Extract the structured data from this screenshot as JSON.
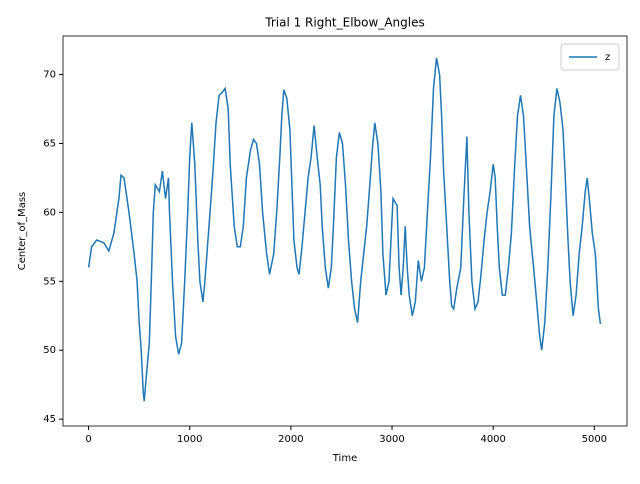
{
  "chart_data": {
    "type": "line",
    "title": "Trial 1 Right_Elbow_Angles",
    "x_label": "Time",
    "y_label": "Center_of_Mass",
    "x": [
      0,
      30,
      80,
      150,
      200,
      250,
      300,
      320,
      350,
      400,
      450,
      480,
      500,
      520,
      540,
      550,
      570,
      600,
      620,
      640,
      660,
      700,
      730,
      760,
      790,
      800,
      830,
      860,
      890,
      920,
      950,
      980,
      1000,
      1020,
      1050,
      1080,
      1100,
      1130,
      1150,
      1200,
      1230,
      1260,
      1290,
      1320,
      1350,
      1380,
      1400,
      1440,
      1470,
      1500,
      1530,
      1560,
      1600,
      1630,
      1660,
      1690,
      1720,
      1760,
      1790,
      1830,
      1860,
      1890,
      1910,
      1930,
      1960,
      1990,
      2010,
      2030,
      2060,
      2080,
      2110,
      2140,
      2170,
      2200,
      2230,
      2260,
      2290,
      2310,
      2340,
      2370,
      2400,
      2420,
      2450,
      2480,
      2510,
      2540,
      2570,
      2600,
      2630,
      2660,
      2690,
      2720,
      2750,
      2780,
      2810,
      2830,
      2860,
      2890,
      2910,
      2940,
      2970,
      2990,
      3010,
      3050,
      3070,
      3090,
      3110,
      3130,
      3150,
      3170,
      3200,
      3230,
      3260,
      3290,
      3320,
      3350,
      3380,
      3410,
      3440,
      3470,
      3490,
      3510,
      3540,
      3570,
      3590,
      3610,
      3640,
      3680,
      3710,
      3740,
      3760,
      3790,
      3820,
      3850,
      3880,
      3910,
      3940,
      3970,
      4000,
      4020,
      4040,
      4060,
      4090,
      4120,
      4150,
      4180,
      4210,
      4240,
      4270,
      4300,
      4330,
      4360,
      4400,
      4430,
      4460,
      4480,
      4510,
      4540,
      4570,
      4600,
      4630,
      4660,
      4690,
      4710,
      4740,
      4760,
      4790,
      4820,
      4850,
      4880,
      4910,
      4930,
      4950,
      4980,
      5010,
      5040,
      5060
    ],
    "series": [
      {
        "name": "z",
        "color": "#1f77b4",
        "values": [
          56,
          57.5,
          58,
          57.8,
          57.2,
          58.5,
          61,
          62.7,
          62.5,
          60,
          57,
          55,
          52,
          50,
          47,
          46.3,
          48,
          50.5,
          55,
          60,
          62,
          61.5,
          63,
          61,
          62.5,
          60,
          55,
          51,
          49.7,
          50.5,
          55,
          60,
          64,
          66.5,
          63.5,
          58,
          55,
          53.5,
          55,
          60,
          63,
          66.5,
          68.5,
          68.7,
          69,
          67.5,
          63.5,
          59,
          57.5,
          57.5,
          59,
          62.5,
          64.5,
          65.3,
          65,
          63.5,
          60,
          57,
          55.5,
          57,
          60,
          64,
          67,
          68.9,
          68.3,
          66,
          62,
          58,
          56,
          55.5,
          57.5,
          60,
          62.5,
          64,
          66.3,
          64,
          62,
          59,
          56,
          54.5,
          56,
          59,
          64,
          65.8,
          65,
          62,
          58,
          55,
          53,
          52,
          55,
          57,
          59,
          62,
          65,
          66.5,
          65,
          61.5,
          57,
          54,
          55,
          58,
          61,
          60.5,
          56,
          54,
          56,
          59,
          56,
          54,
          52.5,
          53.5,
          56.5,
          55,
          56,
          60,
          64,
          69,
          71.2,
          70,
          67,
          63,
          59,
          55,
          53.2,
          53,
          54.5,
          56,
          61,
          65.5,
          60,
          55,
          53,
          53.5,
          55.5,
          58,
          60,
          61.5,
          63.5,
          62.5,
          59,
          56,
          54,
          54,
          56,
          58.5,
          63,
          67,
          68.5,
          67,
          63,
          59,
          56,
          53.5,
          51,
          50,
          52,
          56,
          61,
          67,
          69,
          68,
          66,
          63,
          58,
          55,
          52.5,
          54,
          57,
          59,
          61.5,
          62.5,
          61,
          58.5,
          57,
          53,
          51.9
        ]
      }
    ],
    "xlim": [
      -253,
      5323
    ],
    "ylim": [
      44.5,
      72.8
    ],
    "xticks": [
      0,
      1000,
      2000,
      3000,
      4000,
      5000
    ],
    "yticks": [
      45,
      50,
      55,
      60,
      65,
      70
    ],
    "legend": "upper right"
  }
}
